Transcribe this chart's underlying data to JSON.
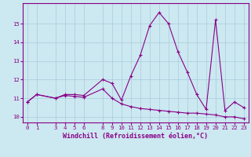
{
  "x": [
    0,
    1,
    3,
    4,
    5,
    6,
    8,
    9,
    10,
    11,
    12,
    13,
    14,
    15,
    16,
    17,
    18,
    19,
    20,
    21,
    22,
    23
  ],
  "y_upper": [
    10.8,
    11.2,
    11.0,
    11.2,
    11.2,
    11.15,
    12.0,
    11.8,
    10.9,
    12.2,
    13.3,
    14.9,
    15.6,
    15.0,
    13.5,
    12.4,
    11.2,
    10.4,
    15.2,
    10.35,
    10.8,
    10.5
  ],
  "y_lower": [
    10.8,
    11.2,
    11.0,
    11.15,
    11.1,
    11.05,
    11.5,
    11.0,
    10.7,
    10.55,
    10.45,
    10.4,
    10.35,
    10.3,
    10.25,
    10.2,
    10.2,
    10.15,
    10.1,
    10.0,
    10.0,
    9.9
  ],
  "line_color": "#880088",
  "marker": "+",
  "bg_color": "#cce8f0",
  "grid_color": "#aaccdd",
  "xlabel": "Windchill (Refroidissement éolien,°C)",
  "xticks": [
    0,
    1,
    3,
    4,
    5,
    6,
    8,
    9,
    10,
    11,
    12,
    13,
    14,
    15,
    16,
    17,
    18,
    19,
    20,
    21,
    22,
    23
  ],
  "yticks": [
    10,
    11,
    12,
    13,
    14,
    15
  ],
  "ylim": [
    9.7,
    16.1
  ],
  "xlim": [
    -0.5,
    23.5
  ],
  "label_fontsize": 6.0,
  "tick_fontsize": 5.2,
  "linewidth": 0.8,
  "markersize": 3.0,
  "markeredgewidth": 0.8
}
